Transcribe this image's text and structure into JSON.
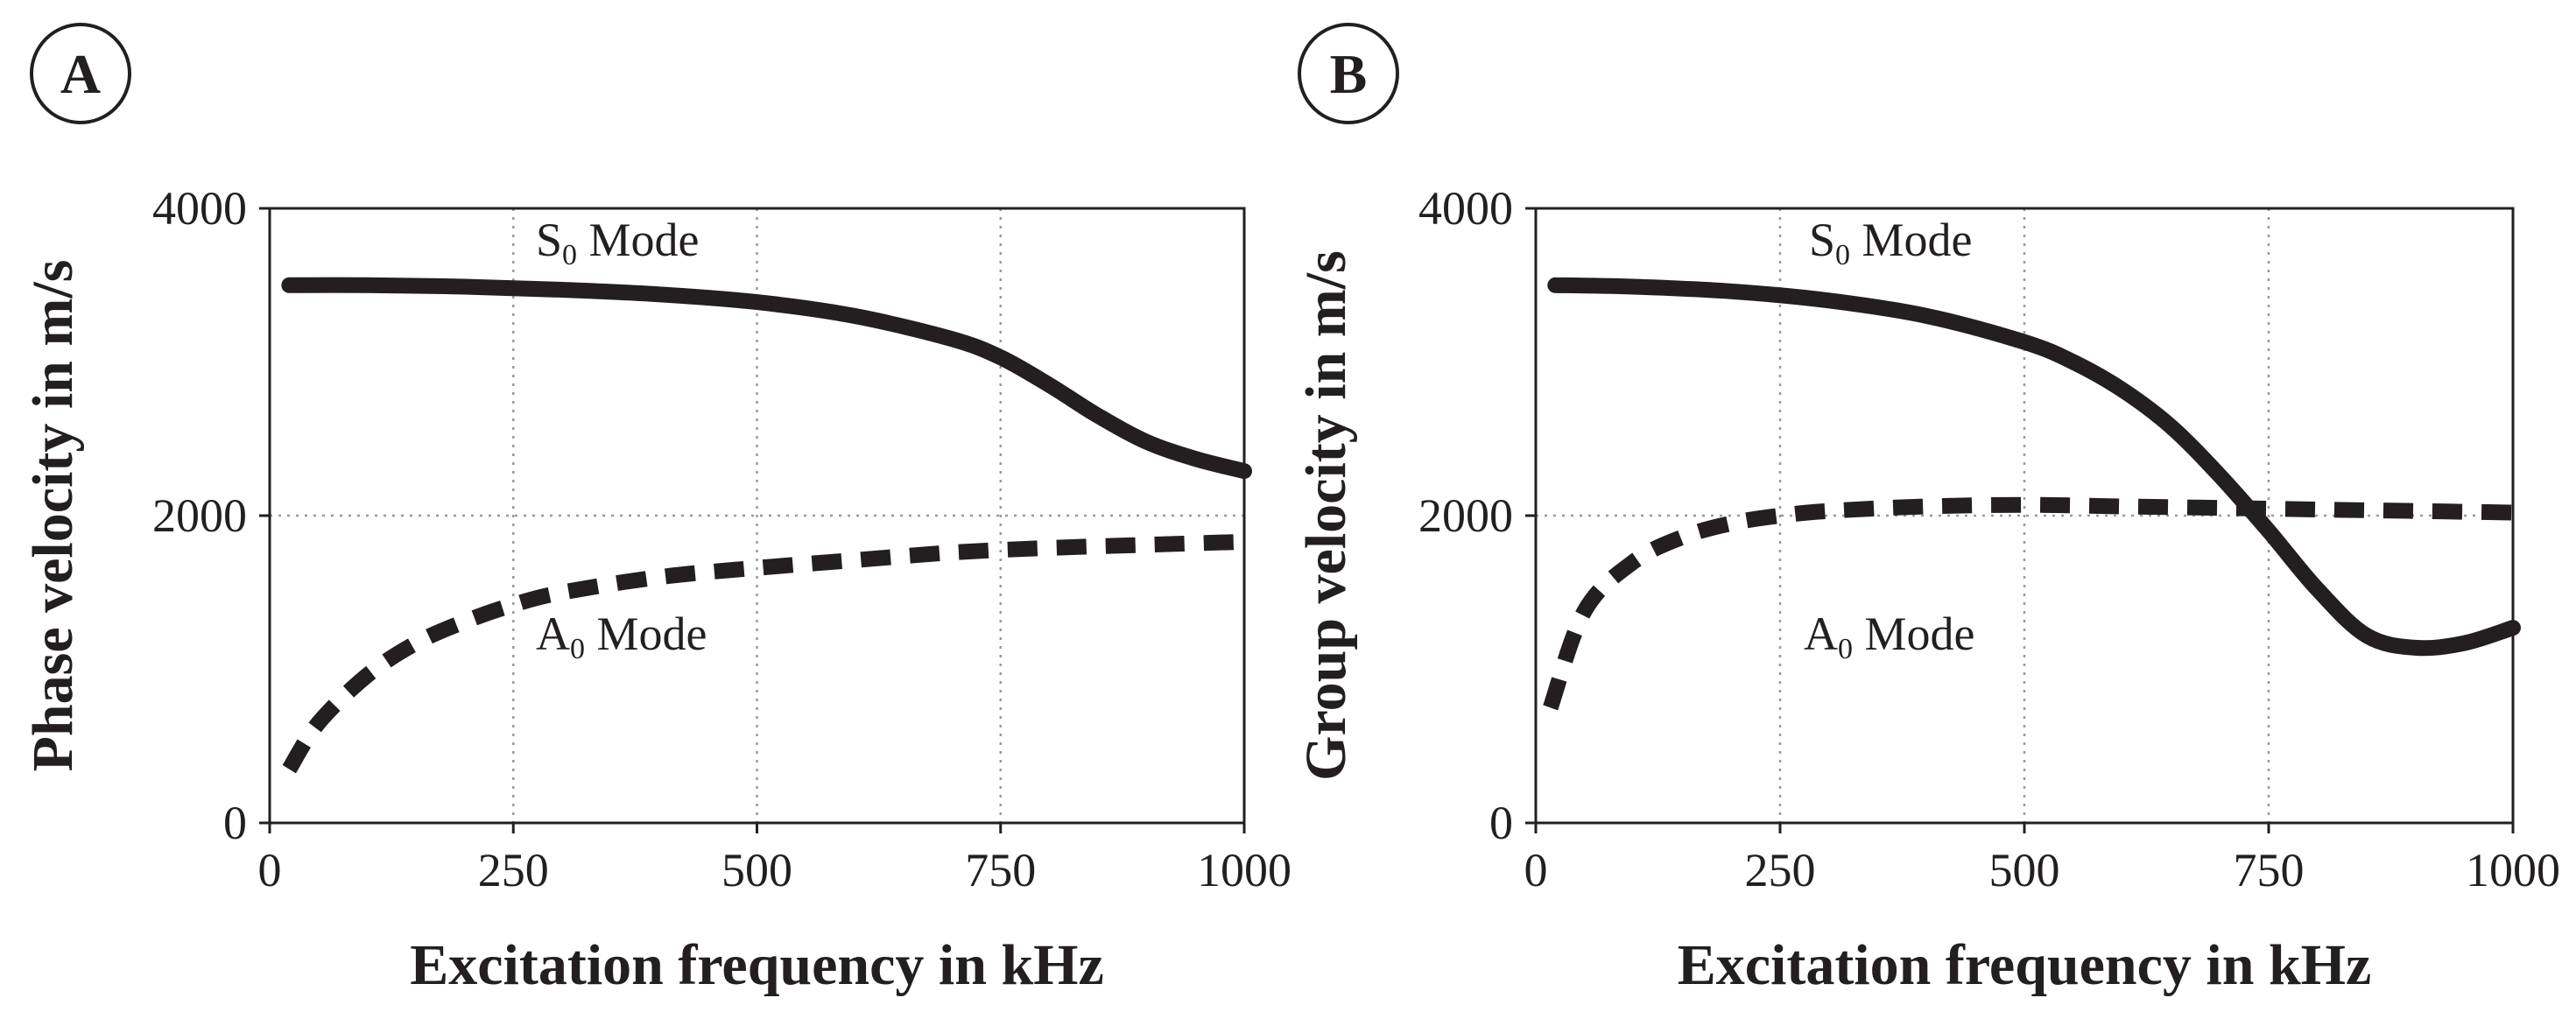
{
  "panels": [
    {
      "id": "A",
      "label": "A",
      "chart_data": {
        "type": "line",
        "title": "",
        "xlabel": "Excitation frequency in kHz",
        "ylabel": "Phase velocity in m/s",
        "xlim": [
          0,
          1000
        ],
        "ylim": [
          0,
          4000
        ],
        "xticks": [
          0,
          250,
          500,
          750,
          1000
        ],
        "xtick_labels": [
          "0",
          "250",
          "500",
          "750",
          "1000"
        ],
        "yticks": [
          0,
          2000,
          4000
        ],
        "ytick_labels": [
          "0",
          "2000",
          "4000"
        ],
        "grid": "dotted, x at 250/500/750, y at 2000",
        "series": [
          {
            "name": "S0 Mode",
            "style": "solid",
            "x": [
              20,
              100,
              200,
              300,
              400,
              500,
              600,
              700,
              750,
              800,
              850,
              900,
              950,
              1000
            ],
            "y": [
              3500,
              3500,
              3490,
              3470,
              3440,
              3390,
              3300,
              3150,
              3030,
              2850,
              2650,
              2480,
              2370,
              2290
            ]
          },
          {
            "name": "A0 Mode",
            "style": "dashed",
            "x": [
              20,
              50,
              100,
              150,
              200,
              250,
              300,
              400,
              500,
              600,
              700,
              800,
              900,
              1000
            ],
            "y": [
              350,
              650,
              960,
              1170,
              1310,
              1420,
              1500,
              1600,
              1660,
              1710,
              1760,
              1790,
              1810,
              1830
            ]
          }
        ],
        "annotations": [
          {
            "text": "S",
            "sub": "0",
            "suffix": " Mode",
            "series": "S0 Mode"
          },
          {
            "text": "A",
            "sub": "0",
            "suffix": " Mode",
            "series": "A0 Mode"
          }
        ]
      }
    },
    {
      "id": "B",
      "label": "B",
      "chart_data": {
        "type": "line",
        "title": "",
        "xlabel": "Excitation frequency in kHz",
        "ylabel": "Group velocity in m/s",
        "xlim": [
          0,
          1000
        ],
        "ylim": [
          0,
          4000
        ],
        "xticks": [
          0,
          250,
          500,
          750,
          1000
        ],
        "xtick_labels": [
          "0",
          "250",
          "500",
          "750",
          "1000"
        ],
        "yticks": [
          0,
          2000,
          4000
        ],
        "ytick_labels": [
          "0",
          "2000",
          "4000"
        ],
        "grid": "dotted, x at 250/500/750, y at 2000",
        "series": [
          {
            "name": "S0 Mode",
            "style": "solid",
            "x": [
              20,
              100,
              200,
              300,
              400,
              500,
              550,
              600,
              650,
              700,
              750,
              800,
              850,
              900,
              950,
              1000
            ],
            "y": [
              3500,
              3490,
              3460,
              3400,
              3300,
              3130,
              3000,
              2820,
              2580,
              2260,
              1900,
              1520,
              1220,
              1140,
              1170,
              1270
            ]
          },
          {
            "name": "A0 Mode",
            "style": "dashed",
            "x": [
              15,
              50,
              100,
              150,
              200,
              250,
              300,
              400,
              500,
              600,
              700,
              800,
              900,
              1000
            ],
            "y": [
              750,
              1380,
              1700,
              1860,
              1950,
              2000,
              2030,
              2060,
              2070,
              2060,
              2050,
              2040,
              2030,
              2020
            ]
          }
        ],
        "annotations": [
          {
            "text": "S",
            "sub": "0",
            "suffix": " Mode",
            "series": "S0 Mode"
          },
          {
            "text": "A",
            "sub": "0",
            "suffix": " Mode",
            "series": "A0 Mode"
          }
        ]
      }
    }
  ]
}
